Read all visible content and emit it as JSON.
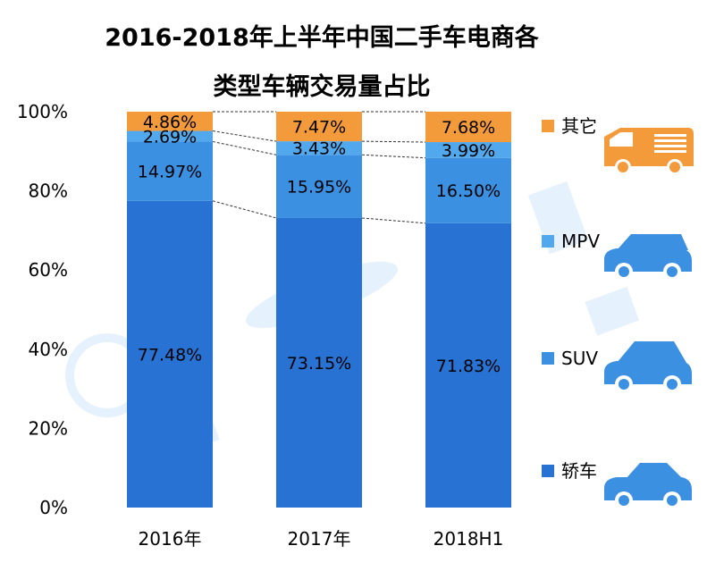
{
  "chart_data": {
    "type": "bar",
    "stacked": true,
    "title": "2016-2018年上半年中国二手车电商各类型车辆交易量占比",
    "title_lines": [
      "2016-2018年上半年中国二手车电商各",
      "类型车辆交易量占比"
    ],
    "categories": [
      "2016年",
      "2017年",
      "2018H1"
    ],
    "ylim": [
      0,
      100
    ],
    "y_ticks": [
      "0%",
      "20%",
      "40%",
      "60%",
      "80%",
      "100%"
    ],
    "series": [
      {
        "name": "轿车",
        "color": "#2772d2",
        "values": [
          77.48,
          73.15,
          71.83
        ],
        "labels": [
          "77.48%",
          "73.15%",
          "71.83%"
        ]
      },
      {
        "name": "SUV",
        "color": "#3b90e2",
        "values": [
          14.97,
          15.95,
          16.5
        ],
        "labels": [
          "14.97%",
          "15.95%",
          "16.50%"
        ]
      },
      {
        "name": "MPV",
        "color": "#52a8ec",
        "values": [
          2.69,
          3.43,
          3.99
        ],
        "labels": [
          "2.69%",
          "3.43%",
          "3.99%"
        ]
      },
      {
        "name": "其它",
        "color": "#f39a3b",
        "values": [
          4.86,
          7.47,
          7.68
        ],
        "labels": [
          "4.86%",
          "7.47%",
          "7.68%"
        ]
      }
    ],
    "legend": [
      "其它",
      "MPV",
      "SUV",
      "轿车"
    ],
    "legend_icons": [
      "van-icon",
      "mpv-car-icon",
      "suv-car-icon",
      "sedan-car-icon"
    ],
    "legend_position": "right",
    "icon_colors": {
      "van": "#f39a3b",
      "car": "#3b90e2"
    }
  }
}
